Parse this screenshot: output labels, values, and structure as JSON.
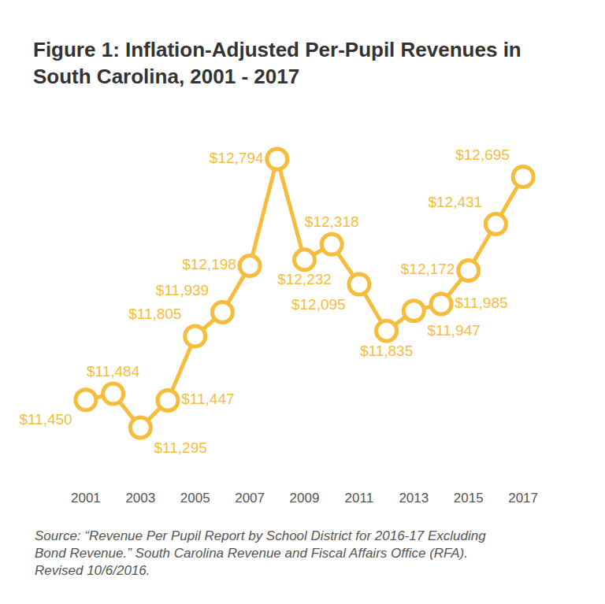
{
  "chart_data": {
    "type": "line",
    "title": "Figure 1: Inflation-Adjusted Per-Pupil Revenues in South Carolina, 2001 - 2017",
    "source": "Source: “Revenue Per Pupil Report by School District for 2016-17 Excluding Bond Revenue.” South Carolina Revenue and Fiscal Affairs Office (RFA). Revised 10/6/2016.",
    "categories": [
      "2001",
      null,
      "2003",
      null,
      "2005",
      null,
      "2007",
      null,
      "2009",
      null,
      "2011",
      null,
      "2013",
      null,
      "2015",
      null,
      "2017"
    ],
    "values": [
      11450,
      11484,
      11295,
      11447,
      11805,
      11939,
      12198,
      12794,
      12232,
      12318,
      12095,
      11835,
      11947,
      11985,
      12172,
      12431,
      12695
    ],
    "value_labels": [
      "$11,450",
      "$11,484",
      "$11,295",
      "$11,447",
      "$11,805",
      "$11,939",
      "$12,198",
      "$12,794",
      "$12,232",
      "$12,318",
      "$12,095",
      "$11,835",
      "$11,947",
      "$11,985",
      "$12,172",
      "$12,431",
      "$12,695"
    ],
    "color": "#f6bd3c",
    "marker": "open-circle",
    "data_labels": true,
    "grid": false,
    "tick_labels": "x"
  }
}
